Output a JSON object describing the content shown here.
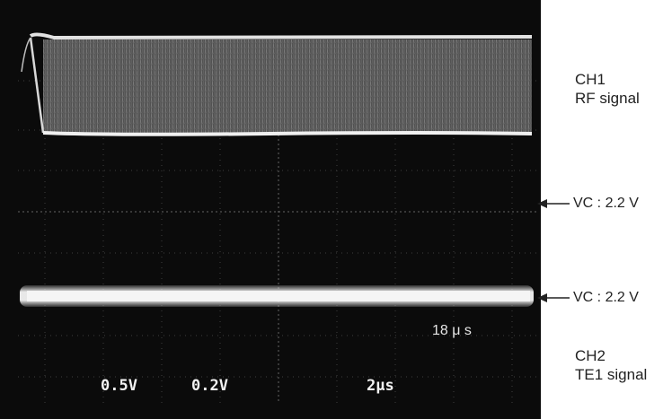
{
  "screen": {
    "scale_ch1": "0.5V",
    "scale_ch2": "0.2V",
    "timebase": "2μs",
    "time_annotation": "18 μ s"
  },
  "channels": {
    "ch1_name": "CH1",
    "ch1_desc": "RF signal",
    "ch2_name": "CH2",
    "ch2_desc": "TE1 signal"
  },
  "markers": {
    "vc_top": "VC : 2.2 V",
    "vc_bottom": "VC : 2.2 V"
  },
  "colors": {
    "screen_bg": "#0b0b0b",
    "trace": "#e8e8e8",
    "grid": "#6a6a6a",
    "annotation": "#222222"
  }
}
